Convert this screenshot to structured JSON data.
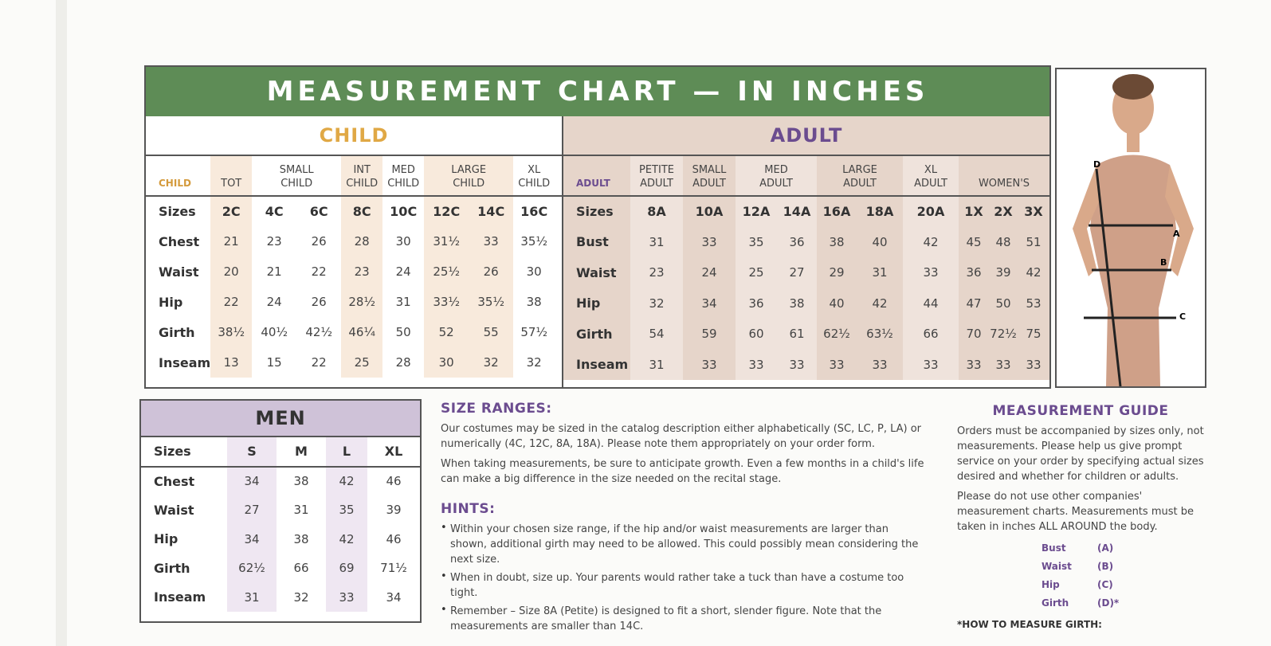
{
  "title": "MEASUREMENT CHART — IN INCHES",
  "child": {
    "heading": "CHILD",
    "corner": "CHILD",
    "groups": [
      [
        "TOT"
      ],
      [
        "SMALL",
        "CHILD"
      ],
      [
        "INT",
        "CHILD"
      ],
      [
        "MED",
        "CHILD"
      ],
      [
        "LARGE",
        "CHILD"
      ],
      [
        "XL",
        "CHILD"
      ]
    ],
    "rows": [
      {
        "label": "Sizes",
        "values": [
          "2C",
          "4C",
          "6C",
          "8C",
          "10C",
          "12C",
          "14C",
          "16C"
        ]
      },
      {
        "label": "Chest",
        "values": [
          "21",
          "23",
          "26",
          "28",
          "30",
          "31½",
          "33",
          "35½"
        ]
      },
      {
        "label": "Waist",
        "values": [
          "20",
          "21",
          "22",
          "23",
          "24",
          "25½",
          "26",
          "30"
        ]
      },
      {
        "label": "Hip",
        "values": [
          "22",
          "24",
          "26",
          "28½",
          "31",
          "33½",
          "35½",
          "38"
        ]
      },
      {
        "label": "Girth",
        "values": [
          "38½",
          "40½",
          "42½",
          "46¼",
          "50",
          "52",
          "55",
          "57½"
        ]
      },
      {
        "label": "Inseam",
        "values": [
          "13",
          "15",
          "22",
          "25",
          "28",
          "30",
          "32",
          "32"
        ]
      }
    ]
  },
  "adult": {
    "heading": "ADULT",
    "corner": "ADULT",
    "groups": [
      [
        "PETITE",
        "ADULT"
      ],
      [
        "SMALL",
        "ADULT"
      ],
      [
        "MED",
        "ADULT"
      ],
      [
        "LARGE",
        "ADULT"
      ],
      [
        "XL",
        "ADULT"
      ],
      [
        "WOMEN'S"
      ]
    ],
    "rows": [
      {
        "label": "Sizes",
        "values": [
          "8A",
          "10A",
          "12A",
          "14A",
          "16A",
          "18A",
          "20A",
          "1X",
          "2X",
          "3X"
        ]
      },
      {
        "label": "Bust",
        "values": [
          "31",
          "33",
          "35",
          "36",
          "38",
          "40",
          "42",
          "45",
          "48",
          "51"
        ]
      },
      {
        "label": "Waist",
        "values": [
          "23",
          "24",
          "25",
          "27",
          "29",
          "31",
          "33",
          "36",
          "39",
          "42"
        ]
      },
      {
        "label": "Hip",
        "values": [
          "32",
          "34",
          "36",
          "38",
          "40",
          "42",
          "44",
          "47",
          "50",
          "53"
        ]
      },
      {
        "label": "Girth",
        "values": [
          "54",
          "59",
          "60",
          "61",
          "62½",
          "63½",
          "66",
          "70",
          "72½",
          "75"
        ]
      },
      {
        "label": "Inseam",
        "values": [
          "31",
          "33",
          "33",
          "33",
          "33",
          "33",
          "33",
          "33",
          "33",
          "33"
        ]
      }
    ]
  },
  "men": {
    "heading": "MEN",
    "rows": [
      {
        "label": "Sizes",
        "values": [
          "S",
          "M",
          "L",
          "XL"
        ]
      },
      {
        "label": "Chest",
        "values": [
          "34",
          "38",
          "42",
          "46"
        ]
      },
      {
        "label": "Waist",
        "values": [
          "27",
          "31",
          "35",
          "39"
        ]
      },
      {
        "label": "Hip",
        "values": [
          "34",
          "38",
          "42",
          "46"
        ]
      },
      {
        "label": "Girth",
        "values": [
          "62½",
          "66",
          "69",
          "71½"
        ]
      },
      {
        "label": "Inseam",
        "values": [
          "31",
          "32",
          "33",
          "34"
        ]
      }
    ]
  },
  "size_ranges": {
    "heading": "SIZE RANGES:",
    "paragraphs": [
      "Our costumes may be sized in the catalog description either alphabetically (SC, LC, P, LA) or numerically (4C, 12C, 8A, 18A). Please note them appropriately on your order form.",
      "When taking measurements, be sure to anticipate growth. Even a few months in a child's life can make a big difference in the size needed on the recital stage."
    ]
  },
  "hints": {
    "heading": "HINTS:",
    "items": [
      "Within your chosen size range, if the hip and/or waist measurements are larger than shown, additional girth may need to be allowed. This could possibly mean considering the next size.",
      "When in doubt, size up. Your parents would rather take a tuck than have a costume too tight.",
      "Remember – Size 8A (Petite) is designed to fit a short, slender figure. Note that the measurements are smaller than 14C."
    ]
  },
  "guide": {
    "heading": "MEASUREMENT GUIDE",
    "paragraphs": [
      "Orders must be accompanied by sizes only, not measurements. Please help us give prompt service on your order by specifying actual sizes desired and whether for children or adults.",
      "Please do not use other companies' measurement charts. Measurements must be taken in inches ALL AROUND the body."
    ],
    "legend": [
      {
        "name": "Bust",
        "code": "(A)"
      },
      {
        "name": "Waist",
        "code": "(B)"
      },
      {
        "name": "Hip",
        "code": "(C)"
      },
      {
        "name": "Girth",
        "code": "(D)*"
      }
    ],
    "footer": "*HOW TO MEASURE GIRTH:"
  },
  "figure": {
    "labels": [
      "D",
      "A",
      "B",
      "C"
    ]
  }
}
